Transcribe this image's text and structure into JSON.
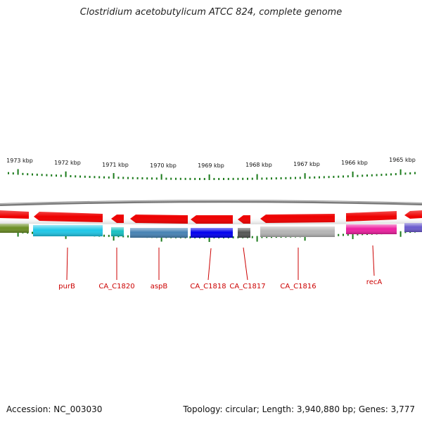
{
  "title": "Clostridium acetobutylicum ATCC 824, complete genome",
  "footer": {
    "accession": "Accession: NC_003030",
    "topology": "Topology: circular; Length: 3,940,880 bp; Genes: 3,777"
  },
  "scale": {
    "unit": "kbp",
    "ticks": [
      {
        "label": "1973 kbp"
      },
      {
        "label": "1972 kbp"
      },
      {
        "label": "1971 kbp"
      },
      {
        "label": "1970 kbp"
      },
      {
        "label": "1969 kbp"
      },
      {
        "label": "1968 kbp"
      },
      {
        "label": "1967 kbp"
      },
      {
        "label": "1966 kbp"
      },
      {
        "label": "1965 kbp"
      }
    ]
  },
  "colors": {
    "cds_arrow": "#ee0000",
    "backbone": "#888888",
    "tick": "#1a7a1a",
    "gene_label": "#cc0000"
  },
  "genes": [
    {
      "label": "",
      "color": "#6b8e23"
    },
    {
      "label": "purB",
      "color": "#1ec8e8"
    },
    {
      "label": "CA_C1820",
      "color": "#17c1c1"
    },
    {
      "label": "aspB",
      "color": "#4682b4"
    },
    {
      "label": "CA_C1818",
      "color": "#0000ee"
    },
    {
      "label": "CA_C1817",
      "color": "#555555"
    },
    {
      "label": "CA_C1816",
      "color": "#b5b5b5"
    },
    {
      "label": "recA",
      "color": "#ee1fa0"
    },
    {
      "label": "",
      "color": "#6a5acd"
    }
  ]
}
